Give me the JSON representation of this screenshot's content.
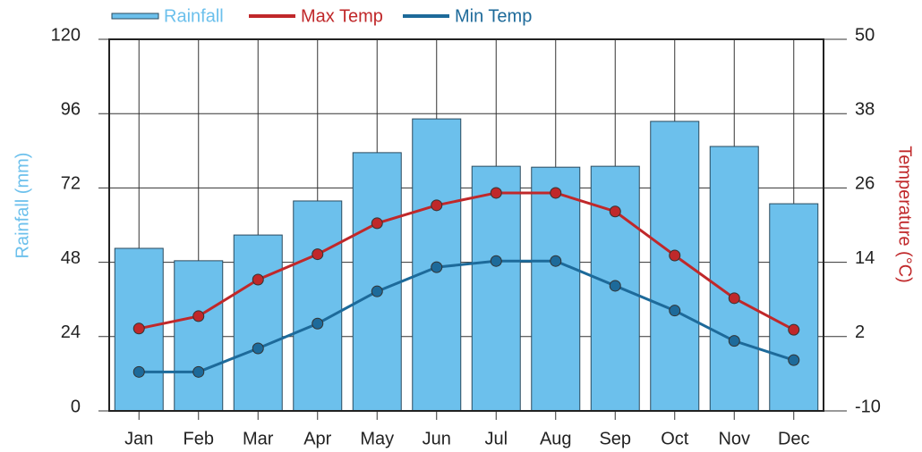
{
  "chart_data": {
    "type": "bar",
    "categories": [
      "Jan",
      "Feb",
      "Mar",
      "Apr",
      "May",
      "Jun",
      "Jul",
      "Aug",
      "Sep",
      "Oct",
      "Nov",
      "Dec"
    ],
    "series": [
      {
        "name": "Rainfall",
        "type": "bar",
        "color": "#6cc0ec",
        "values": [
          52.5,
          48.5,
          56.8,
          67.8,
          83.4,
          94.3,
          79,
          78.7,
          79,
          93.5,
          85.4,
          66.9
        ]
      },
      {
        "name": "Max Temp",
        "type": "line",
        "axis": "y2",
        "color": "#c0282a",
        "values": [
          3.3,
          5.3,
          11.2,
          15.3,
          20.3,
          23.2,
          25.2,
          25.2,
          22.2,
          15.1,
          8.2,
          3.1
        ]
      },
      {
        "name": "Min Temp",
        "type": "line",
        "axis": "y2",
        "color": "#1d6a9a",
        "values": [
          -3.7,
          -3.7,
          0.1,
          4.1,
          9.3,
          13.2,
          14.2,
          14.2,
          10.2,
          6.2,
          1.3,
          -1.8
        ]
      }
    ],
    "ylabel": "Rainfall (mm)",
    "y2label": "Temperature (°C)",
    "ylim": [
      0,
      120
    ],
    "yticks": [
      0,
      24,
      48,
      72,
      96,
      120
    ],
    "y2lim": [
      -10,
      50
    ],
    "y2ticks": [
      -10,
      2,
      14,
      26,
      38,
      50
    ],
    "grid": true,
    "legend": "top"
  }
}
